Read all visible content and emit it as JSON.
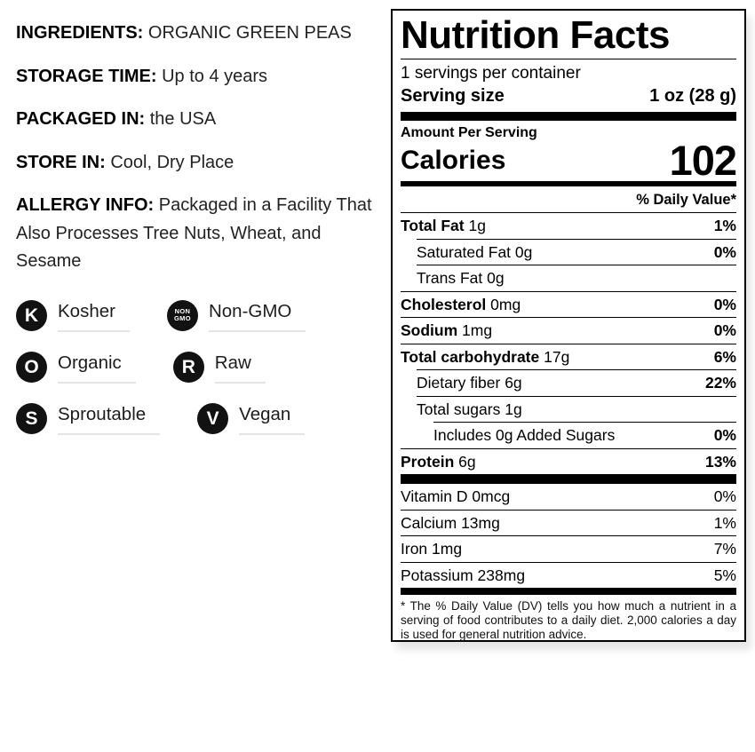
{
  "product_info": {
    "fields": [
      {
        "label": "INGREDIENTS:",
        "value": "ORGANIC GREEN PEAS"
      },
      {
        "label": "STORAGE TIME:",
        "value": "Up to 4 years"
      },
      {
        "label": "PACKAGED IN:",
        "value": "the USA"
      },
      {
        "label": "STORE IN:",
        "value": "Cool, Dry Place"
      },
      {
        "label": "ALLERGY INFO:",
        "value": "Packaged in a Facility That Also Processes Tree Nuts, Wheat, and Sesame"
      }
    ],
    "badges": [
      {
        "icon": "K",
        "label": "Kosher"
      },
      {
        "icon": "NON GMO",
        "label": "Non-GMO"
      },
      {
        "icon": "O",
        "label": "Organic"
      },
      {
        "icon": "R",
        "label": "Raw"
      },
      {
        "icon": "S",
        "label": "Sproutable"
      },
      {
        "icon": "V",
        "label": "Vegan"
      }
    ]
  },
  "nutrition_facts": {
    "title": "Nutrition Facts",
    "servings_per_container": "1 servings per container",
    "serving_size_label": "Serving size",
    "serving_size_value": "1 oz (28 g)",
    "amount_per_serving_label": "Amount Per Serving",
    "calories_label": "Calories",
    "calories_value": "102",
    "daily_value_header": "% Daily Value*",
    "nutrients": [
      {
        "name": "Total Fat",
        "amount": "1g",
        "dv": "1%",
        "bold": true,
        "indent": 0
      },
      {
        "name": "Saturated Fat",
        "amount": "0g",
        "dv": "0%",
        "bold": false,
        "indent": 1
      },
      {
        "name": "Trans Fat",
        "amount": "0g",
        "dv": "",
        "bold": false,
        "indent": 1
      },
      {
        "name": "Cholesterol",
        "amount": "0mg",
        "dv": "0%",
        "bold": true,
        "indent": 0
      },
      {
        "name": "Sodium",
        "amount": "1mg",
        "dv": "0%",
        "bold": true,
        "indent": 0
      },
      {
        "name": "Total carbohydrate",
        "amount": "17g",
        "dv": "6%",
        "bold": true,
        "indent": 0
      },
      {
        "name": "Dietary fiber",
        "amount": "6g",
        "dv": "22%",
        "bold": false,
        "indent": 1
      },
      {
        "name": "Total sugars",
        "amount": "1g",
        "dv": "",
        "bold": false,
        "indent": 1
      },
      {
        "name": "Includes 0g Added Sugars",
        "amount": "",
        "dv": "0%",
        "bold": false,
        "indent": 2
      },
      {
        "name": "Protein",
        "amount": "6g",
        "dv": "13%",
        "bold": true,
        "indent": 0
      }
    ],
    "vitamins": [
      {
        "name": "Vitamin D",
        "amount": "0mcg",
        "dv": "0%"
      },
      {
        "name": "Calcium",
        "amount": "13mg",
        "dv": "1%"
      },
      {
        "name": "Iron",
        "amount": "1mg",
        "dv": "7%"
      },
      {
        "name": "Potassium",
        "amount": "238mg",
        "dv": "5%"
      }
    ],
    "footnote": "* The % Daily Value (DV) tells you how much a nutrient in a serving of food contributes to a daily diet. 2,000 calories a day is used for general nutrition advice."
  },
  "colors": {
    "text": "#000000",
    "badge_bg": "#121212",
    "badge_underline": "#e4e4e4"
  }
}
